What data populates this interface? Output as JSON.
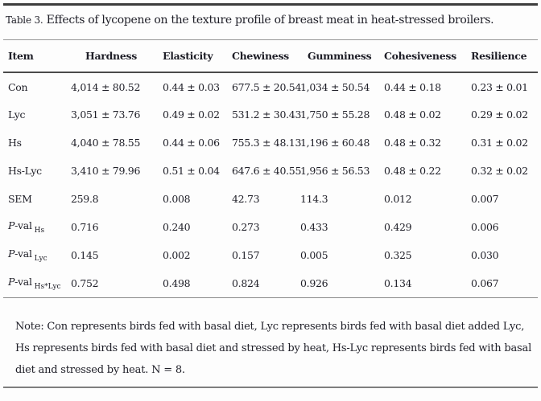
{
  "title": {
    "label": "Table 3.",
    "text": "Effects of lycopene on the texture profile of breast meat in heat-stressed broilers."
  },
  "table": {
    "columns": [
      "Item",
      "Hardness",
      "Elasticity",
      "Chewiness",
      "Gumminess",
      "Cohesiveness",
      "Resilience"
    ],
    "rows": [
      {
        "item": "Con",
        "cells": [
          "4,014 ± 80.52",
          "0.44 ± 0.03",
          "677.5 ± 20.54",
          "1,034 ± 50.54",
          "0.44 ± 0.18",
          "0.23 ± 0.01"
        ]
      },
      {
        "item": "Lyc",
        "cells": [
          "3,051 ± 73.76",
          "0.49 ± 0.02",
          "531.2 ± 30.43",
          "1,750 ± 55.28",
          "0.48 ± 0.02",
          "0.29 ± 0.02"
        ]
      },
      {
        "item": "Hs",
        "cells": [
          "4,040 ± 78.55",
          "0.44 ± 0.06",
          "755.3 ± 48.13",
          "1,196 ± 60.48",
          "0.48 ± 0.32",
          "0.31 ± 0.02"
        ]
      },
      {
        "item": "Hs-Lyc",
        "cells": [
          "3,410 ± 79.96",
          "0.51 ± 0.04",
          "647.6 ± 40.55",
          "1,956 ± 56.53",
          "0.48 ± 0.22",
          "0.32 ± 0.02"
        ]
      },
      {
        "item": "SEM",
        "cells": [
          "259.8",
          "0.008",
          "42.73",
          "114.3",
          "0.012",
          "0.007"
        ]
      },
      {
        "item": {
          "pre": "P",
          "mid": "-val",
          "sub": "Hs"
        },
        "cells": [
          "0.716",
          "0.240",
          "0.273",
          "0.433",
          "0.429",
          "0.006"
        ]
      },
      {
        "item": {
          "pre": "P",
          "mid": "-val",
          "sub": "Lyc"
        },
        "cells": [
          "0.145",
          "0.002",
          "0.157",
          "0.005",
          "0.325",
          "0.030"
        ]
      },
      {
        "item": {
          "pre": "P",
          "mid": "-val",
          "sub": "Hs*Lyc"
        },
        "cells": [
          "0.752",
          "0.498",
          "0.824",
          "0.926",
          "0.134",
          "0.067"
        ]
      }
    ]
  },
  "note": {
    "lines": [
      "Note: Con represents birds fed with basal diet, Lyc represents birds fed with basal diet added Lyc,",
      "Hs represents birds fed with basal diet and stressed by heat, Hs-Lyc represents birds fed with basal",
      "diet and stressed by heat. N = 8."
    ]
  }
}
